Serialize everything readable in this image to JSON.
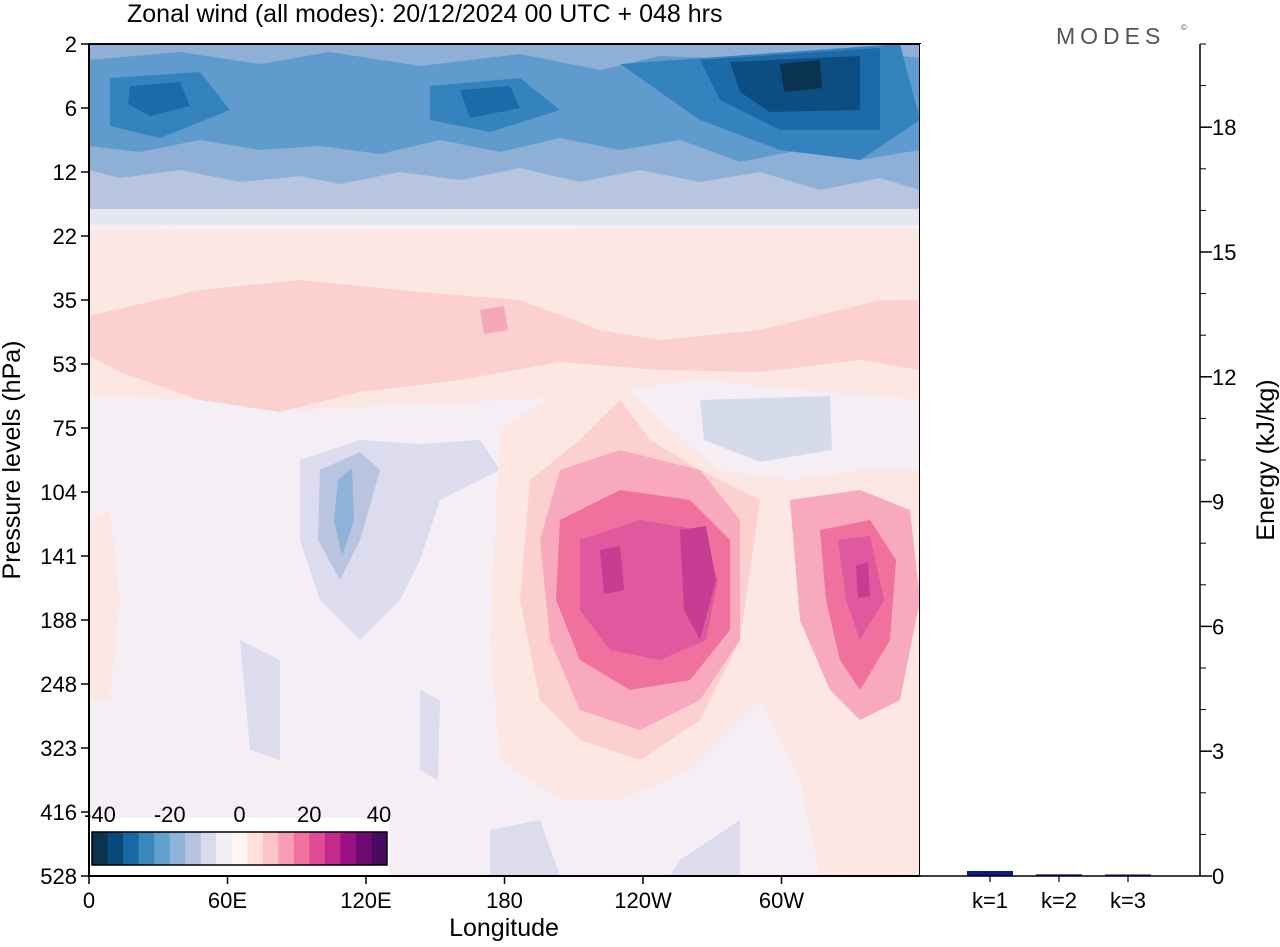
{
  "title": "Zonal wind (all modes):  20/12/2024  00 UTC  + 048 hrs",
  "brand": "MODES",
  "brand_mark": "©",
  "contour_panel": {
    "xlabel": "Longitude",
    "ylabel": "Pressure levels (hPa)",
    "x_ticks": [
      "0",
      "60E",
      "120E",
      "180",
      "120W",
      "60W"
    ],
    "y_ticks": [
      "2",
      "6",
      "12",
      "22",
      "35",
      "53",
      "75",
      "104",
      "141",
      "188",
      "248",
      "323",
      "416",
      "528"
    ],
    "colorbar_labels": [
      "-40",
      "-20",
      "0",
      "20",
      "40"
    ],
    "colorbar_colors": [
      "#0a3350",
      "#0b4a78",
      "#1769a6",
      "#3987bd",
      "#5fa0ce",
      "#8fb3d8",
      "#b6c3e0",
      "#d8dbec",
      "#f1eef6",
      "#fff5f2",
      "#ffe1dc",
      "#fcc5c4",
      "#f89db3",
      "#f0709e",
      "#e04b98",
      "#c42a8c",
      "#9b1181",
      "#6e0a73",
      "#4a0a5e"
    ],
    "features": [
      {
        "name": "stratospheric easterlies",
        "band": "2-14 hPa",
        "min": -40
      },
      {
        "name": "westerly jet core central Pacific",
        "lon": "~110W-140W",
        "level": "141 hPa",
        "max": 30
      },
      {
        "name": "westerly jet core Atlantic",
        "lon": "~20W",
        "level": "141 hPa",
        "max": 30
      }
    ]
  },
  "chart_data": [
    {
      "type": "heatmap",
      "title": "Zonal wind (all modes):  20/12/2024  00 UTC  + 048 hrs",
      "xlabel": "Longitude",
      "ylabel": "Pressure levels (hPa)",
      "x_ticks": [
        "0",
        "60E",
        "120E",
        "180",
        "120W",
        "60W"
      ],
      "y_levels": [
        2,
        6,
        12,
        22,
        35,
        53,
        75,
        104,
        141,
        188,
        248,
        323,
        416,
        528
      ],
      "colorbar_range": [
        -40,
        40
      ],
      "colorbar_ticks": [
        -40,
        -20,
        0,
        20,
        40
      ]
    },
    {
      "type": "bar",
      "categories": [
        "k=1",
        "k=2",
        "k=3"
      ],
      "values": [
        0.12,
        0.04,
        0.02
      ],
      "ylabel": "Energy (kJ/kg)",
      "ylim": [
        0,
        20
      ],
      "y_ticks": [
        0,
        3,
        6,
        9,
        12,
        15,
        18
      ],
      "bar_color": "#0a1a8c"
    }
  ]
}
